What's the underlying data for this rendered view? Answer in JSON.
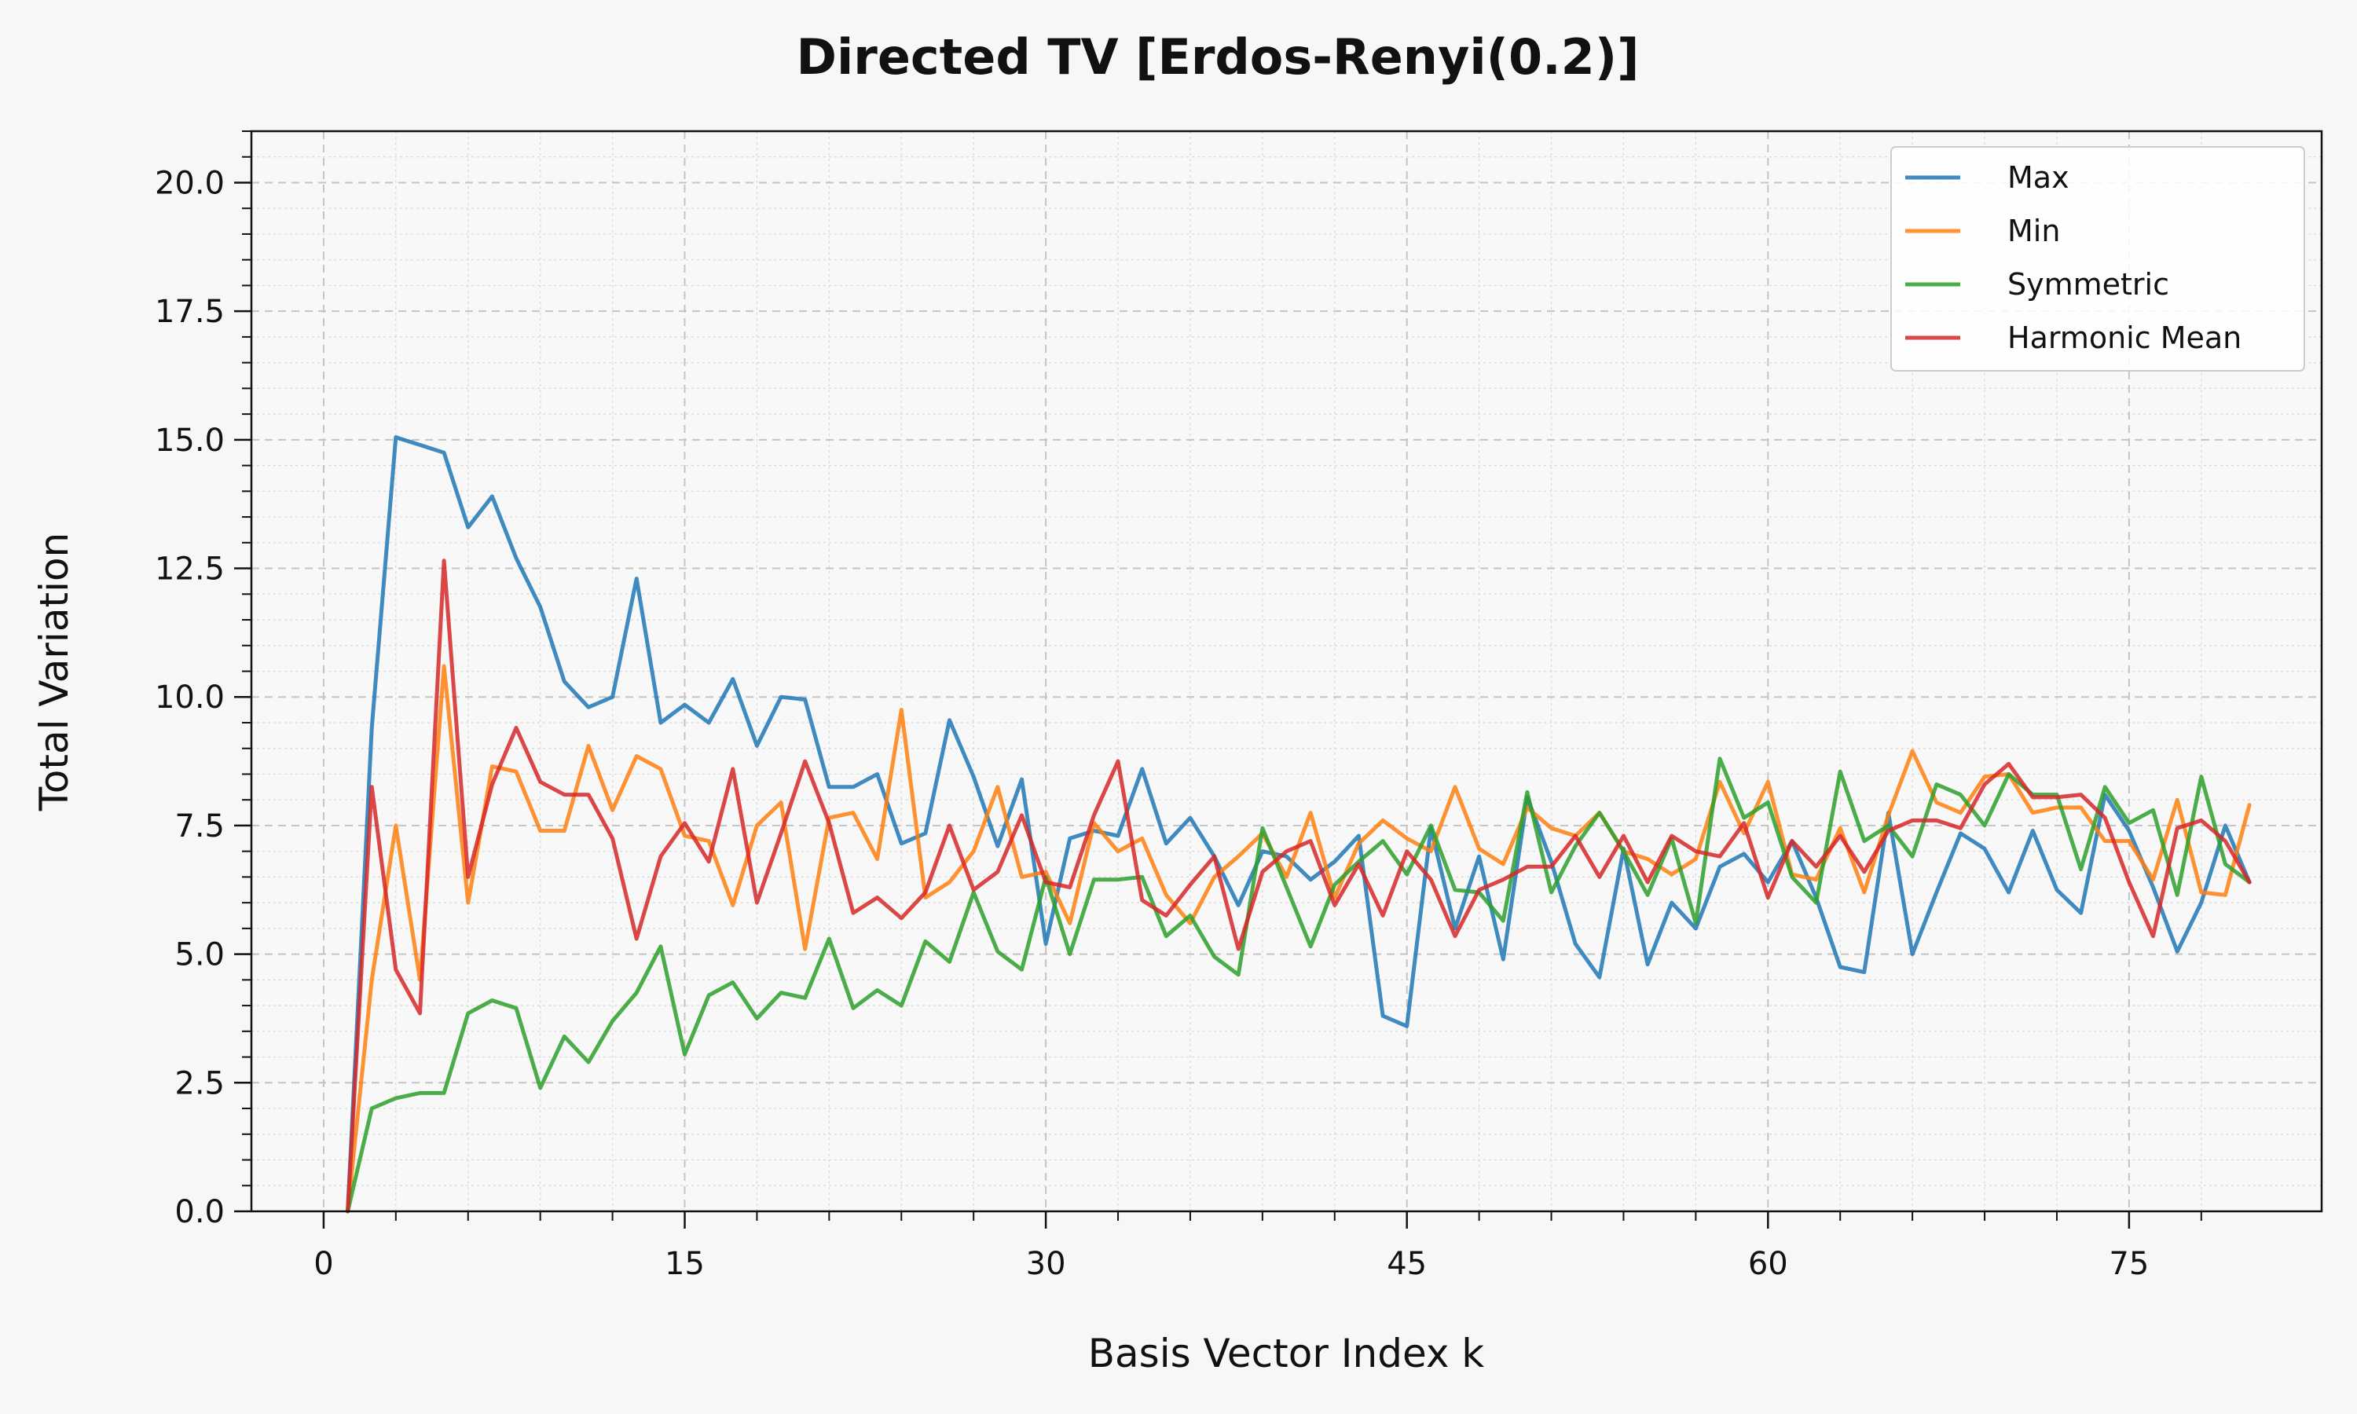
{
  "chart_data": {
    "type": "line",
    "title": "Directed TV [Erdos-Renyi(0.2)]",
    "xlabel": "Basis Vector Index k",
    "ylabel": "Total Variation",
    "xlim": [
      -3,
      83
    ],
    "ylim": [
      0,
      21
    ],
    "xticks": [
      0,
      15,
      30,
      45,
      60,
      75
    ],
    "yticks": [
      0.0,
      2.5,
      5.0,
      7.5,
      10.0,
      12.5,
      15.0,
      17.5,
      20.0
    ],
    "grid": true,
    "legend_position": "top-right",
    "x": [
      1,
      2,
      3,
      4,
      5,
      6,
      7,
      8,
      9,
      10,
      11,
      12,
      13,
      14,
      15,
      16,
      17,
      18,
      19,
      20,
      21,
      22,
      23,
      24,
      25,
      26,
      27,
      28,
      29,
      30,
      31,
      32,
      33,
      34,
      35,
      36,
      37,
      38,
      39,
      40,
      41,
      42,
      43,
      44,
      45,
      46,
      47,
      48,
      49,
      50,
      51,
      52,
      53,
      54,
      55,
      56,
      57,
      58,
      59,
      60,
      61,
      62,
      63,
      64,
      65,
      66,
      67,
      68,
      69,
      70,
      71,
      72,
      73,
      74,
      75,
      76,
      77,
      78,
      79,
      80
    ],
    "series": [
      {
        "name": "Max",
        "color": "#1f77b4",
        "values": [
          0.0,
          9.4,
          15.05,
          14.9,
          14.75,
          13.3,
          13.9,
          12.7,
          11.75,
          10.3,
          9.8,
          10.0,
          12.3,
          9.5,
          9.85,
          9.5,
          10.35,
          9.05,
          10.0,
          9.95,
          8.25,
          8.25,
          8.5,
          7.15,
          7.35,
          9.55,
          8.45,
          7.1,
          8.4,
          5.2,
          7.25,
          7.4,
          7.3,
          8.6,
          7.15,
          7.65,
          6.9,
          5.95,
          7.0,
          6.9,
          6.45,
          6.8,
          7.3,
          3.8,
          3.6,
          7.45,
          5.5,
          6.9,
          4.9,
          8.05,
          6.8,
          5.2,
          4.55,
          7.05,
          4.8,
          6.0,
          5.5,
          6.7,
          6.95,
          6.4,
          7.2,
          6.1,
          4.75,
          4.65,
          7.75,
          5.0,
          6.2,
          7.35,
          7.05,
          6.2,
          7.4,
          6.25,
          5.8,
          8.1,
          7.4,
          6.3,
          5.05,
          6.0,
          7.5,
          6.4
        ]
      },
      {
        "name": "Min",
        "color": "#ff7f0e",
        "values": [
          0.0,
          4.5,
          7.5,
          4.5,
          10.6,
          6.0,
          8.65,
          8.55,
          7.4,
          7.4,
          9.05,
          7.8,
          8.85,
          8.6,
          7.3,
          7.2,
          5.95,
          7.5,
          7.95,
          5.1,
          7.65,
          7.75,
          6.85,
          9.75,
          6.1,
          6.4,
          7.0,
          8.25,
          6.5,
          6.6,
          5.6,
          7.55,
          7.0,
          7.25,
          6.15,
          5.6,
          6.5,
          6.9,
          7.35,
          6.5,
          7.75,
          6.1,
          7.15,
          7.6,
          7.25,
          7.0,
          8.25,
          7.05,
          6.75,
          7.85,
          7.45,
          7.3,
          7.75,
          7.0,
          6.85,
          6.55,
          6.85,
          8.35,
          7.35,
          8.35,
          6.55,
          6.45,
          7.45,
          6.2,
          7.7,
          8.95,
          7.95,
          7.75,
          8.45,
          8.5,
          7.75,
          7.85,
          7.85,
          7.2,
          7.2,
          6.45,
          8.0,
          6.2,
          6.15,
          7.9
        ]
      },
      {
        "name": "Symmetric",
        "color": "#2ca02c",
        "values": [
          0.0,
          2.0,
          2.2,
          2.3,
          2.3,
          3.85,
          4.1,
          3.95,
          2.4,
          3.4,
          2.9,
          3.7,
          4.25,
          5.15,
          3.05,
          4.2,
          4.45,
          3.75,
          4.25,
          4.15,
          5.3,
          3.95,
          4.3,
          4.0,
          5.25,
          4.85,
          6.2,
          5.05,
          4.7,
          6.5,
          5.0,
          6.45,
          6.45,
          6.5,
          5.35,
          5.75,
          4.95,
          4.6,
          7.45,
          6.3,
          5.15,
          6.35,
          6.8,
          7.2,
          6.55,
          7.5,
          6.25,
          6.2,
          5.65,
          8.15,
          6.2,
          7.1,
          7.75,
          7.0,
          6.15,
          7.25,
          5.6,
          8.8,
          7.65,
          7.95,
          6.5,
          6.0,
          8.55,
          7.2,
          7.5,
          6.9,
          8.3,
          8.1,
          7.5,
          8.5,
          8.1,
          8.1,
          6.65,
          8.25,
          7.55,
          7.8,
          6.15,
          8.45,
          6.75,
          6.4
        ]
      },
      {
        "name": "Harmonic Mean",
        "color": "#d62728",
        "values": [
          0.0,
          8.25,
          4.7,
          3.85,
          12.65,
          6.5,
          8.3,
          9.4,
          8.35,
          8.1,
          8.1,
          7.25,
          5.3,
          6.9,
          7.55,
          6.8,
          8.6,
          6.0,
          7.35,
          8.75,
          7.55,
          5.8,
          6.1,
          5.7,
          6.2,
          7.5,
          6.25,
          6.6,
          7.7,
          6.4,
          6.3,
          7.7,
          8.75,
          6.05,
          5.75,
          6.35,
          6.9,
          5.1,
          6.6,
          7.0,
          7.2,
          5.95,
          6.75,
          5.75,
          7.0,
          6.45,
          5.35,
          6.25,
          6.45,
          6.7,
          6.7,
          7.3,
          6.5,
          7.3,
          6.4,
          7.3,
          7.0,
          6.9,
          7.55,
          6.1,
          7.2,
          6.7,
          7.3,
          6.6,
          7.4,
          7.6,
          7.6,
          7.45,
          8.3,
          8.7,
          8.05,
          8.05,
          8.1,
          7.65,
          6.4,
          5.35,
          7.45,
          7.6,
          7.2,
          6.4
        ]
      }
    ]
  }
}
